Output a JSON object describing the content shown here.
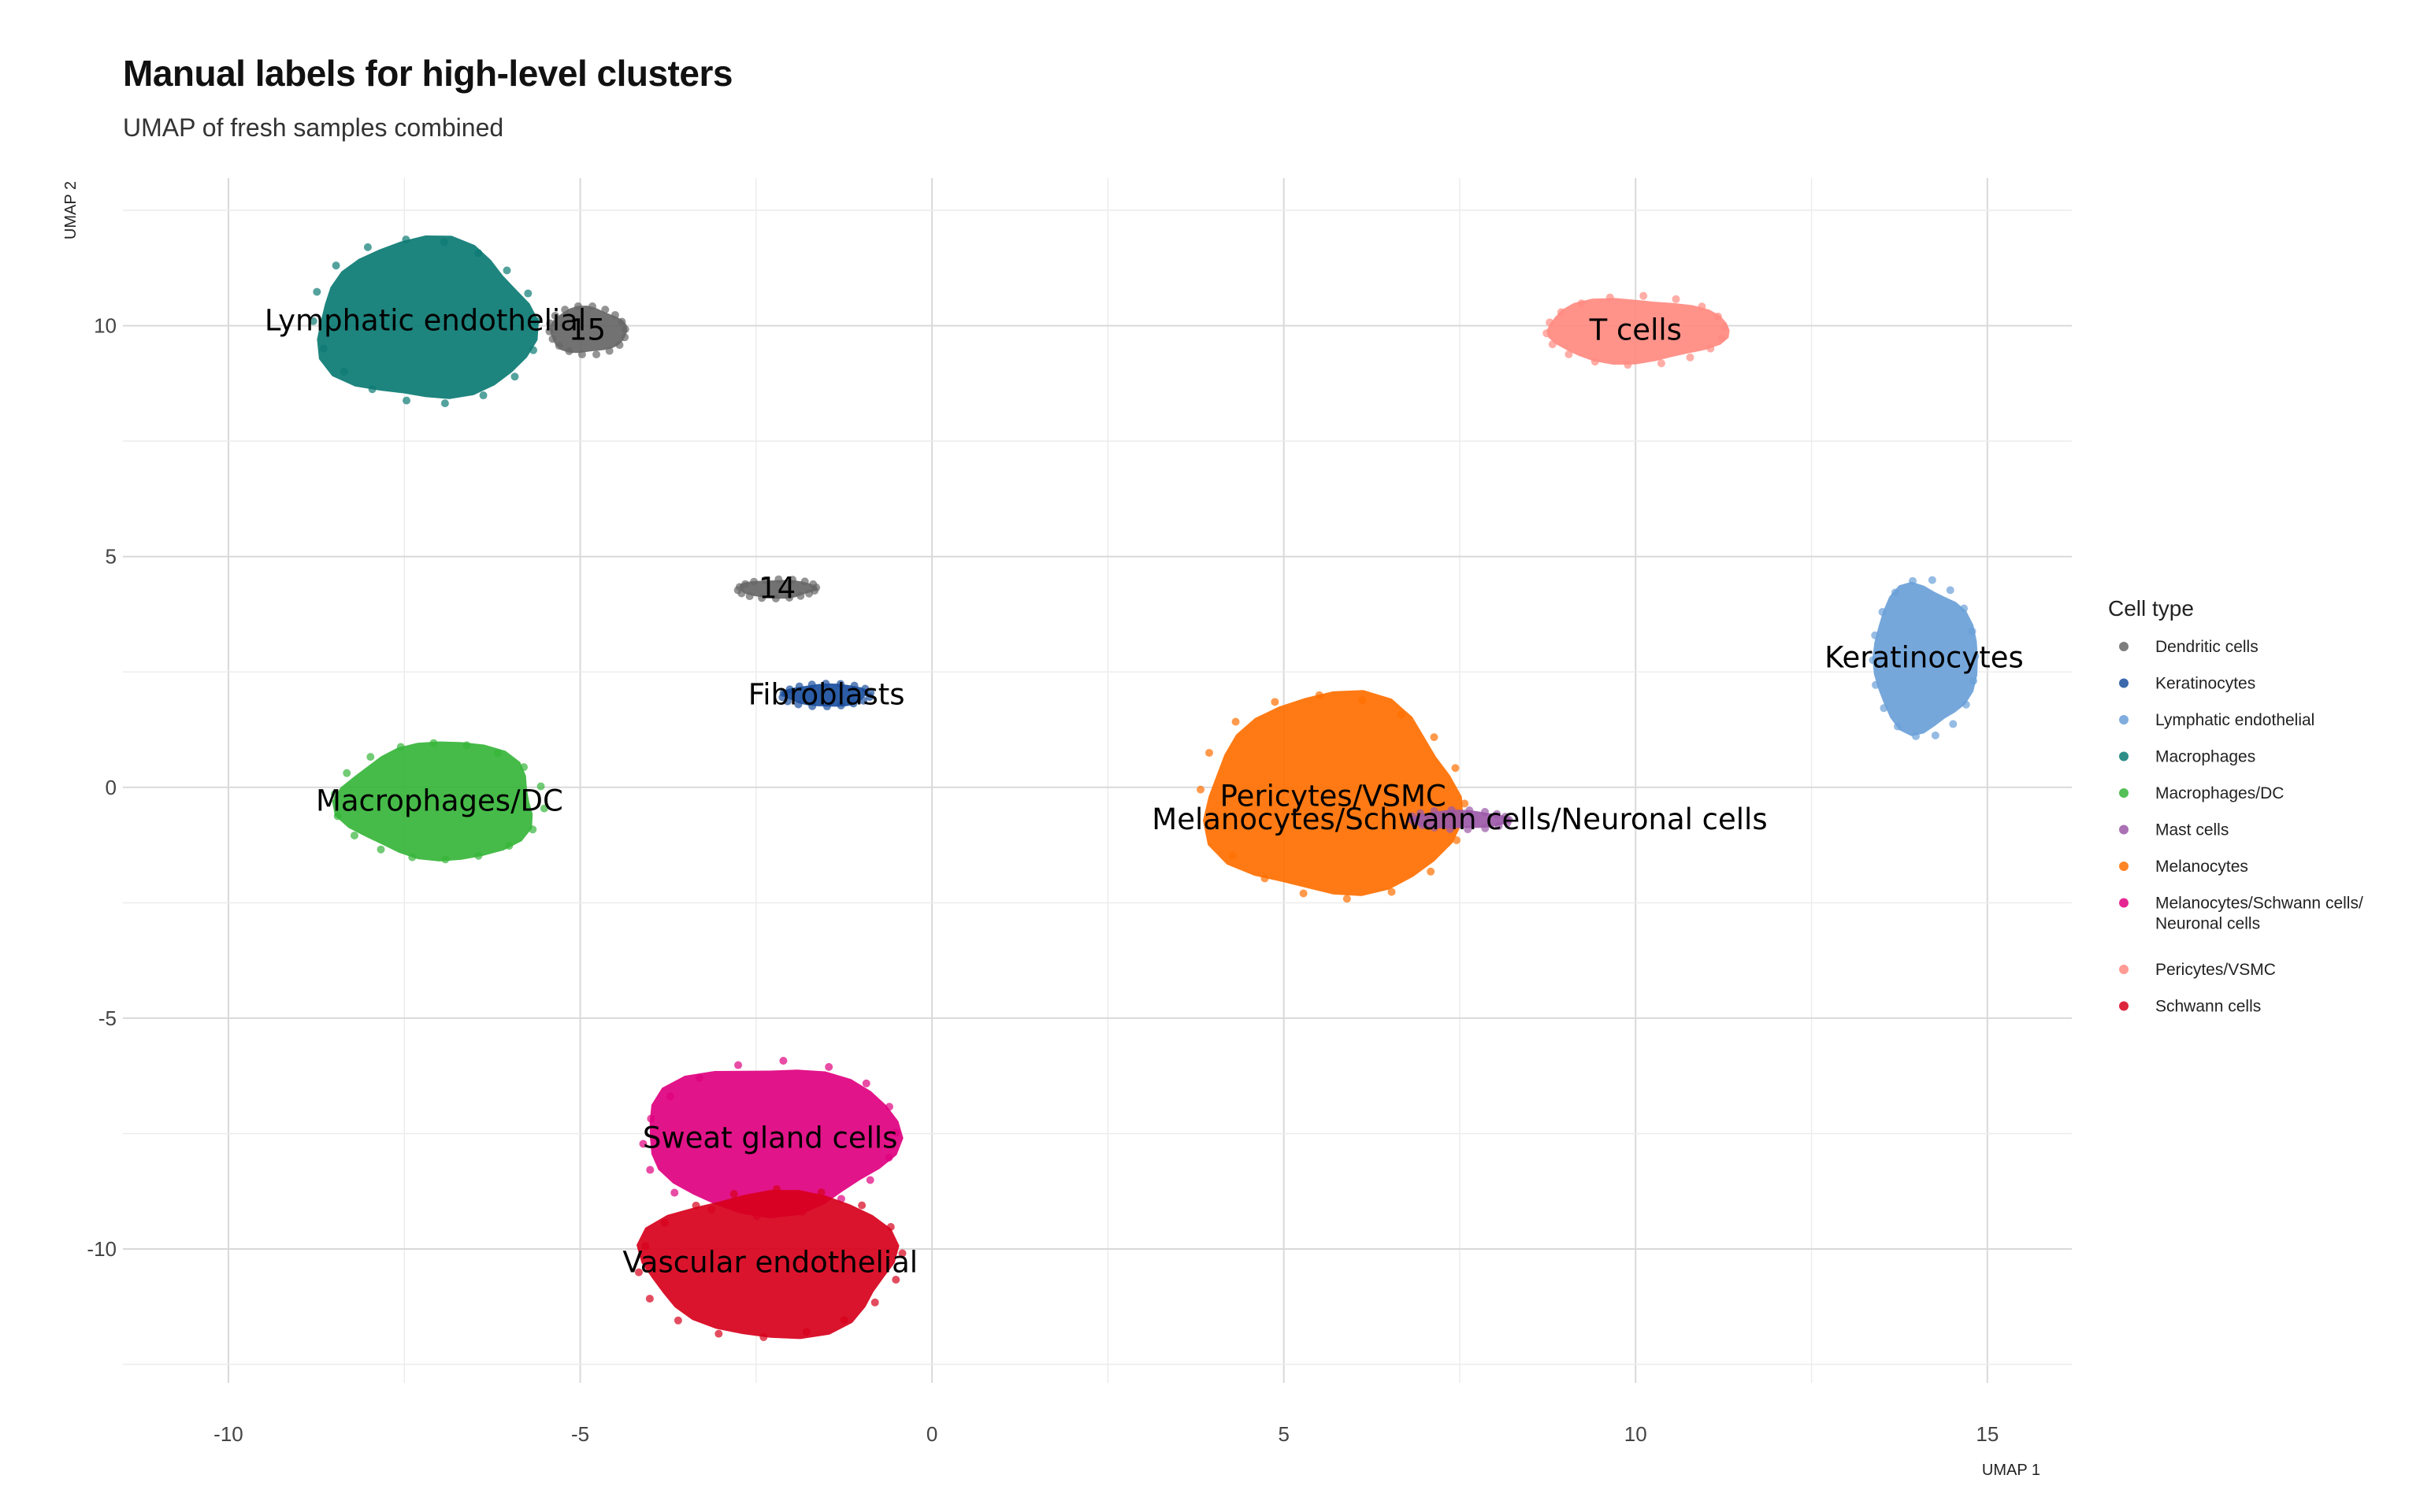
{
  "chart_data": {
    "type": "scatter",
    "title": "Manual labels for high-level clusters",
    "subtitle": "UMAP of fresh samples combined",
    "xlabel": "UMAP 1",
    "ylabel": "UMAP 2",
    "xlim": [
      -11.5,
      16.2
    ],
    "ylim": [
      -12.9,
      13.2
    ],
    "x_ticks": [
      -10,
      -5,
      0,
      5,
      10,
      15
    ],
    "x_tick_labels": [
      "-10",
      "-5",
      "0",
      "5",
      "10",
      "15"
    ],
    "y_ticks": [
      10,
      5,
      0,
      -5,
      -10
    ],
    "y_tick_labels": [
      "10",
      "5",
      "0",
      "-5",
      "-10"
    ],
    "grid": true,
    "legend_title": "Cell type",
    "legend_position": "right",
    "legend": [
      {
        "label": "Dendritic cells",
        "color": "#666666"
      },
      {
        "label": "Keratinocytes",
        "color": "#1a4f9e"
      },
      {
        "label": "Lymphatic endothelial",
        "color": "#6a9fd8"
      },
      {
        "label": "Macrophages",
        "color": "#0b7a73"
      },
      {
        "label": "Macrophages/DC",
        "color": "#36b53a"
      },
      {
        "label": "Mast cells",
        "color": "#9b59a8"
      },
      {
        "label": "Melanocytes",
        "color": "#ff6f00"
      },
      {
        "label": "Melanocytes/Schwann cells/",
        "label2": "Neuronal cells",
        "color": "#e0007f"
      },
      {
        "label": "Pericytes/VSMC",
        "color": "#ff8a80"
      },
      {
        "label": "Schwann cells",
        "color": "#d7001b"
      }
    ],
    "clusters": [
      {
        "label": "Lymphatic endothelial",
        "color": "#0b7a73",
        "center": [
          -7.2,
          10.1
        ],
        "rx": 1.55,
        "ry": 1.75
      },
      {
        "label": "15",
        "color": "#666666",
        "center": [
          -4.9,
          9.9
        ],
        "rx": 0.55,
        "ry": 0.5
      },
      {
        "label": "T cells",
        "color": "#ff8a80",
        "center": [
          10.0,
          9.9
        ],
        "rx": 1.3,
        "ry": 0.7
      },
      {
        "label": "14",
        "color": "#666666",
        "center": [
          -2.2,
          4.3
        ],
        "rx": 0.55,
        "ry": 0.2
      },
      {
        "label": "Fibroblasts",
        "color": "#1a4f9e",
        "center": [
          -1.5,
          2.0
        ],
        "rx": 0.6,
        "ry": 0.25
      },
      {
        "label": "Macrophages/DC",
        "color": "#36b53a",
        "center": [
          -7.0,
          -0.3
        ],
        "rx": 1.4,
        "ry": 1.3
      },
      {
        "label": "Pericytes/VSMC",
        "color": "#ff6f00",
        "center": [
          5.7,
          -0.2
        ],
        "rx": 1.8,
        "ry": 2.2
      },
      {
        "label": "Melanocytes/Schwann cells/Neuronal cells",
        "color": "#9b59a8",
        "center": [
          7.5,
          -0.7
        ],
        "rx": 0.7,
        "ry": 0.2
      },
      {
        "label": "Keratinocytes",
        "color": "#6a9fd8",
        "center": [
          14.1,
          2.8
        ],
        "rx": 0.75,
        "ry": 1.6
      },
      {
        "label": "Sweat gland cells",
        "color": "#e0007f",
        "center": [
          -2.3,
          -7.6
        ],
        "rx": 1.8,
        "ry": 1.6
      },
      {
        "label": "Vascular endothelial",
        "color": "#d7001b",
        "center": [
          -2.3,
          -10.3
        ],
        "rx": 1.8,
        "ry": 1.6
      }
    ]
  }
}
